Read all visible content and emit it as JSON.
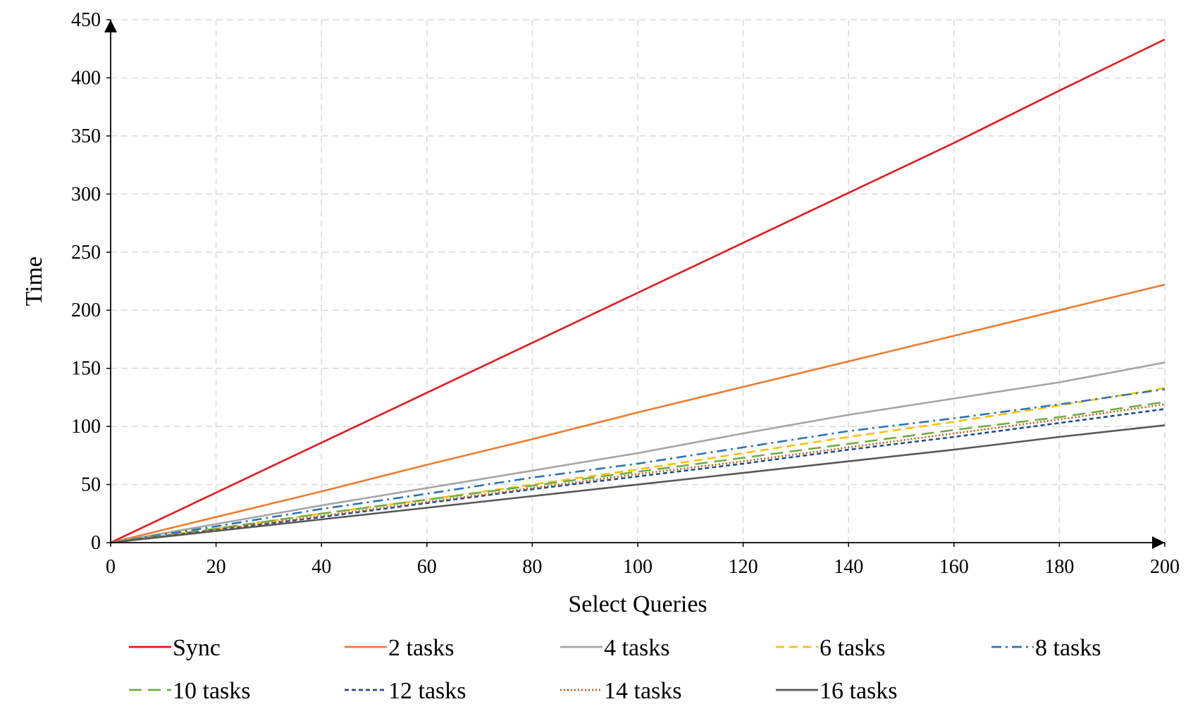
{
  "chart_data": {
    "type": "line",
    "title": "",
    "xlabel": "Select Queries",
    "ylabel": "Time",
    "xlim": [
      0,
      200
    ],
    "ylim": [
      0,
      450
    ],
    "x_ticks": [
      0,
      20,
      40,
      60,
      80,
      100,
      120,
      140,
      160,
      180,
      200
    ],
    "y_ticks": [
      0,
      50,
      100,
      150,
      200,
      250,
      300,
      350,
      400,
      450
    ],
    "grid": true,
    "legend_position": "bottom",
    "x": [
      0,
      20,
      40,
      60,
      80,
      100,
      120,
      140,
      160,
      180,
      200
    ],
    "series": [
      {
        "name": "Sync",
        "color": "#e31a1c",
        "dash": "solid",
        "values": [
          0,
          43,
          86,
          129,
          172,
          215,
          258,
          301,
          344,
          389,
          433
        ]
      },
      {
        "name": "2 tasks",
        "color": "#ed7d31",
        "dash": "solid",
        "values": [
          0,
          22,
          44,
          67,
          89,
          112,
          134,
          156,
          178,
          200,
          222
        ]
      },
      {
        "name": "4 tasks",
        "color": "#a5a5a5",
        "dash": "solid",
        "values": [
          0,
          16,
          32,
          47,
          62,
          77,
          94,
          110,
          124,
          138,
          155
        ]
      },
      {
        "name": "6 tasks",
        "color": "#ffc000",
        "dash": "dash",
        "values": [
          0,
          12,
          25,
          37,
          50,
          63,
          77,
          91,
          104,
          118,
          133
        ]
      },
      {
        "name": "8 tasks",
        "color": "#2e75b6",
        "dash": "dashdot",
        "values": [
          0,
          14,
          29,
          42,
          56,
          68,
          82,
          96,
          107,
          119,
          132
        ]
      },
      {
        "name": "10 tasks",
        "color": "#70ad47",
        "dash": "longdash",
        "values": [
          0,
          12,
          25,
          37,
          49,
          61,
          73,
          85,
          97,
          108,
          121
        ]
      },
      {
        "name": "12 tasks",
        "color": "#1f4e99",
        "dash": "shortdash",
        "values": [
          0,
          11,
          22,
          34,
          46,
          57,
          68,
          80,
          91,
          103,
          115
        ]
      },
      {
        "name": "14 tasks",
        "color": "#c55a11",
        "dash": "dot",
        "values": [
          0,
          11,
          23,
          35,
          47,
          59,
          70,
          82,
          94,
          106,
          119
        ]
      },
      {
        "name": "16 tasks",
        "color": "#595959",
        "dash": "solid",
        "values": [
          0,
          10,
          20,
          30,
          40,
          50,
          60,
          70,
          80,
          91,
          101
        ]
      }
    ]
  }
}
